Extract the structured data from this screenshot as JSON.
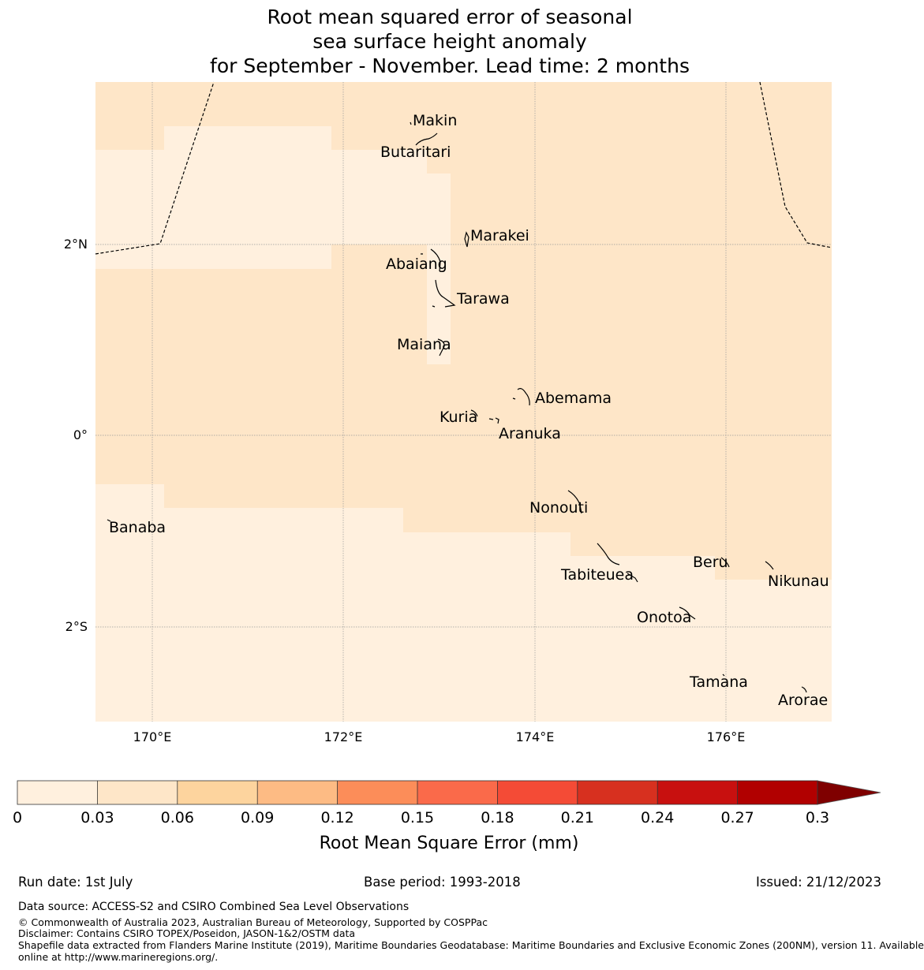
{
  "title": {
    "line1": "Root mean squared error of seasonal",
    "line2": "sea surface height anomaly",
    "line3": "for September - November. Lead time: 2 months"
  },
  "map": {
    "lon_ticks": [
      "170°E",
      "172°E",
      "174°E",
      "176°E"
    ],
    "lat_ticks": [
      "2°N",
      "0°",
      "2°S"
    ],
    "colors": {
      "class_0_003": "#fff0de",
      "class_003_006": "#fee6c8",
      "outline": "#000000",
      "grid": "#999999"
    },
    "places": [
      "Makin",
      "Butaritari",
      "Marakei",
      "Abaiang",
      "Tarawa",
      "Maiana",
      "Abemama",
      "Kuria",
      "Aranuka",
      "Nonouti",
      "Banaba",
      "Tabiteuea",
      "Beru",
      "Nikunau",
      "Onotoa",
      "Tamana",
      "Arorae"
    ]
  },
  "colorbar": {
    "ticks": [
      "0",
      "0.03",
      "0.06",
      "0.09",
      "0.12",
      "0.15",
      "0.18",
      "0.21",
      "0.24",
      "0.27",
      "0.3"
    ],
    "colors": [
      "#fff0de",
      "#fee6c8",
      "#fdd49e",
      "#fdbb84",
      "#fc8d59",
      "#fa6a4a",
      "#f44b36",
      "#d7301f",
      "#c8100f",
      "#b10000",
      "#7f0000"
    ],
    "label": "Root Mean Square Error (mm)"
  },
  "footer": {
    "run_date": "Run date: 1st July",
    "base_period": "Base period: 1993-2018",
    "issued": "Issued: 21/12/2023",
    "data_source": "Data source: ACCESS-S2 and CSIRO Combined Sea Level Observations",
    "copyright": "© Commonwealth of Australia 2023, Australian Bureau of Meteorology, Supported by COSPPac",
    "disclaimer": "Disclaimer: Contains CSIRO TOPEX/Poseidon, JASON-1&2/OSTM data",
    "shapefile_line1": "Shapefile data extracted from Flanders Marine Institute (2019), Maritime Boundaries Geodatabase: Maritime Boundaries and Exclusive Economic Zones (200NM), version 11. Available",
    "shapefile_line2": "online at http://www.marineregions.org/."
  }
}
